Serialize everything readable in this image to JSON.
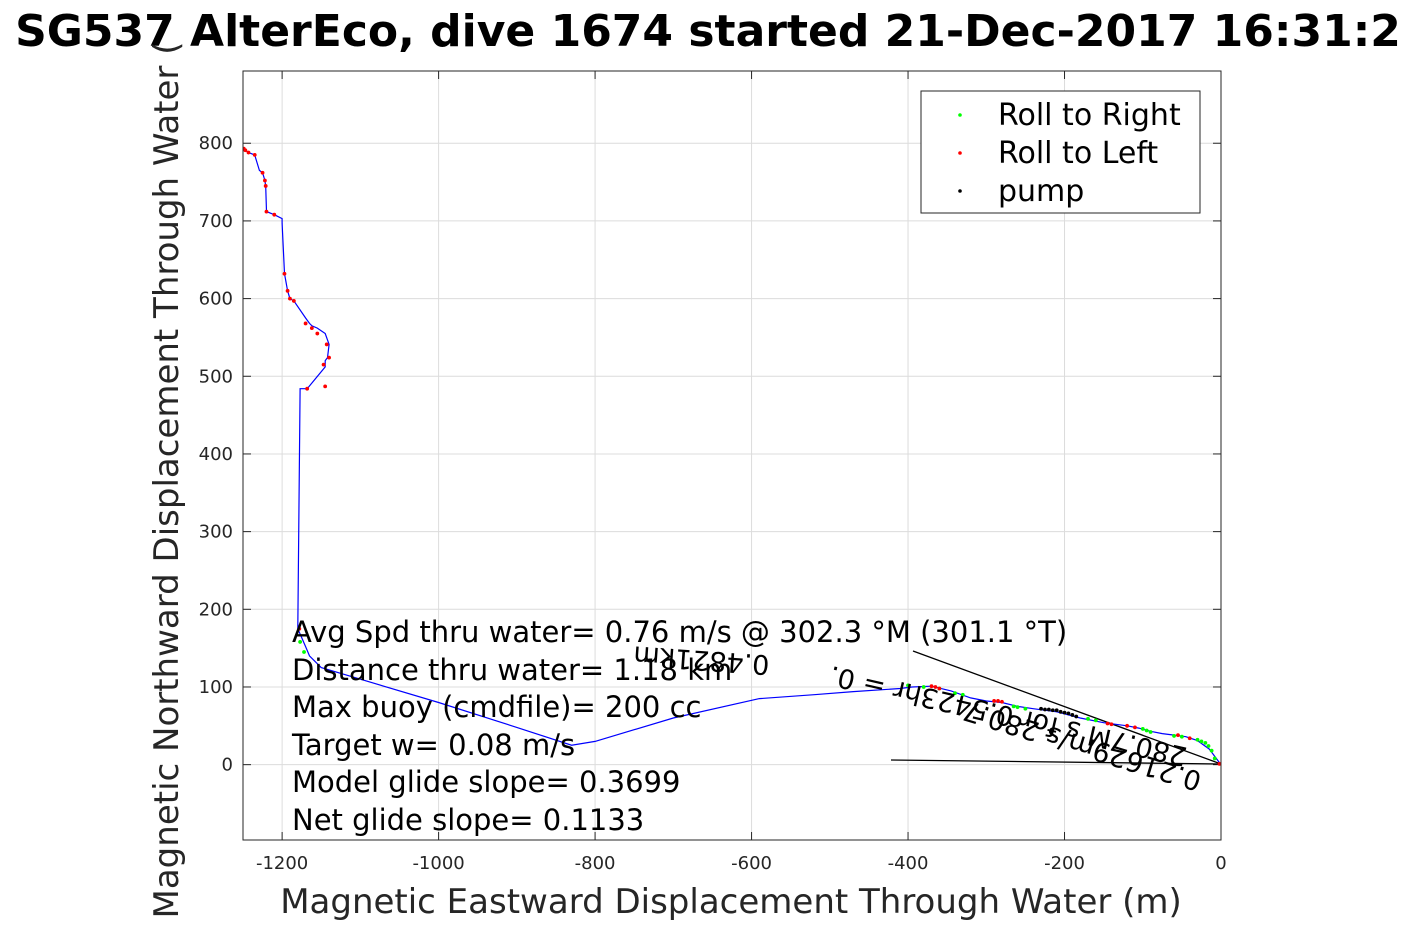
{
  "chart_data": {
    "type": "line",
    "title": "SG537 AlterEco, dive 1674 started 21-Dec-2017 16:31:2",
    "xlabel": "Magnetic Eastward Displacement Through Water (m)",
    "ylabel": "Magnetic Northward Displacement Through Water (",
    "xlim": [
      -1250,
      0
    ],
    "ylim": [
      -97,
      893
    ],
    "xticks": [
      -1200,
      -1000,
      -800,
      -600,
      -400,
      -200,
      0
    ],
    "yticks": [
      0,
      100,
      200,
      300,
      400,
      500,
      600,
      700,
      800
    ],
    "grid": true,
    "legend_position": "top-right",
    "legend": [
      {
        "label": "Roll to Right",
        "color": "#00ff00"
      },
      {
        "label": "Roll to Left",
        "color": "#ff0000"
      },
      {
        "label": "pump",
        "color": "#000000"
      }
    ],
    "track_color": "#0000ff",
    "track": {
      "x": [
        0,
        -15,
        -30,
        -45,
        -60,
        -75,
        -90,
        -105,
        -120,
        -150,
        -180,
        -210,
        -240,
        -260,
        -280,
        -300,
        -320,
        -345,
        -370,
        -395,
        -410,
        -470,
        -520,
        -590,
        -700,
        -800,
        -830,
        -900,
        -1000,
        -1100,
        -1150,
        -1165,
        -1170,
        -1180,
        -1177,
        -1168,
        -1145,
        -1145,
        -1142,
        -1140,
        -1145,
        -1155,
        -1162,
        -1165,
        -1170,
        -1185,
        -1190,
        -1193,
        -1197,
        -1200,
        -1200,
        -1210,
        -1220,
        -1221,
        -1222,
        -1225,
        -1229,
        -1235,
        -1243,
        -1247,
        -1250
      ],
      "y": [
        0,
        20,
        31,
        36,
        38,
        40,
        43,
        47,
        50,
        54,
        60,
        68,
        72,
        75,
        80,
        82,
        86,
        95,
        101,
        100,
        98,
        94,
        90,
        85,
        60,
        30,
        25,
        48,
        80,
        110,
        125,
        140,
        152,
        175,
        484,
        484,
        512,
        520,
        524,
        541,
        555,
        562,
        565,
        568,
        575,
        597,
        600,
        610,
        632,
        697,
        703,
        708,
        712,
        745,
        752,
        762,
        765,
        785,
        788,
        791,
        793
      ]
    },
    "series": [
      {
        "name": "Roll to Right",
        "color": "#00ff00",
        "x": [
          -8,
          -12,
          -16,
          -20,
          -25,
          -30,
          -50,
          -60,
          -90,
          -95,
          -100,
          -160,
          -170,
          -250,
          -260,
          -265,
          -330,
          -340,
          -360,
          -380,
          -400,
          -1172,
          -1177
        ],
        "y": [
          8,
          18,
          24,
          28,
          30,
          32,
          36,
          37,
          42,
          44,
          46,
          57,
          59,
          72,
          74,
          75,
          90,
          92,
          98,
          100,
          102,
          145,
          158
        ]
      },
      {
        "name": "Roll to Left",
        "color": "#ff0000",
        "x": [
          -2,
          -40,
          -55,
          -110,
          -120,
          -140,
          -145,
          -280,
          -285,
          -290,
          -360,
          -365,
          -370,
          -1178,
          -1168,
          -1145,
          -1147,
          -1140,
          -1143,
          -1155,
          -1162,
          -1170,
          -1185,
          -1190,
          -1193,
          -1197,
          -1210,
          -1220,
          -1221,
          -1222,
          -1225,
          -1235,
          -1243,
          -1247,
          -1249
        ],
        "y": [
          1,
          34,
          38,
          48,
          50,
          52,
          53,
          81,
          82,
          82,
          98,
          100,
          101,
          175,
          484,
          487,
          515,
          524,
          541,
          555,
          562,
          568,
          597,
          600,
          610,
          632,
          708,
          712,
          745,
          752,
          762,
          785,
          788,
          791,
          793
        ]
      },
      {
        "name": "pump",
        "color": "#000000",
        "x": [
          -185,
          -190,
          -195,
          -200,
          -205,
          -210,
          -215,
          -220,
          -225,
          -230
        ],
        "y": [
          62,
          64,
          66,
          67,
          68,
          70,
          70,
          71,
          71,
          72
        ]
      }
    ],
    "annotations": [
      "Avg Spd thru water=  0.76 m/s @ 302.3 °M (301.1 °T)",
      "Distance thru water= 1.18 km",
      "Max buoy (cmdfile)= 200 cc",
      "Target w= 0.08 m/s",
      "Model glide slope= 0.3699",
      "Net glide slope= 0.1133"
    ],
    "rotated_labels": [
      "0.4821km",
      "280.7M s for 0.5423hr = 0.",
      "0.21629m/s 280.7"
    ]
  }
}
